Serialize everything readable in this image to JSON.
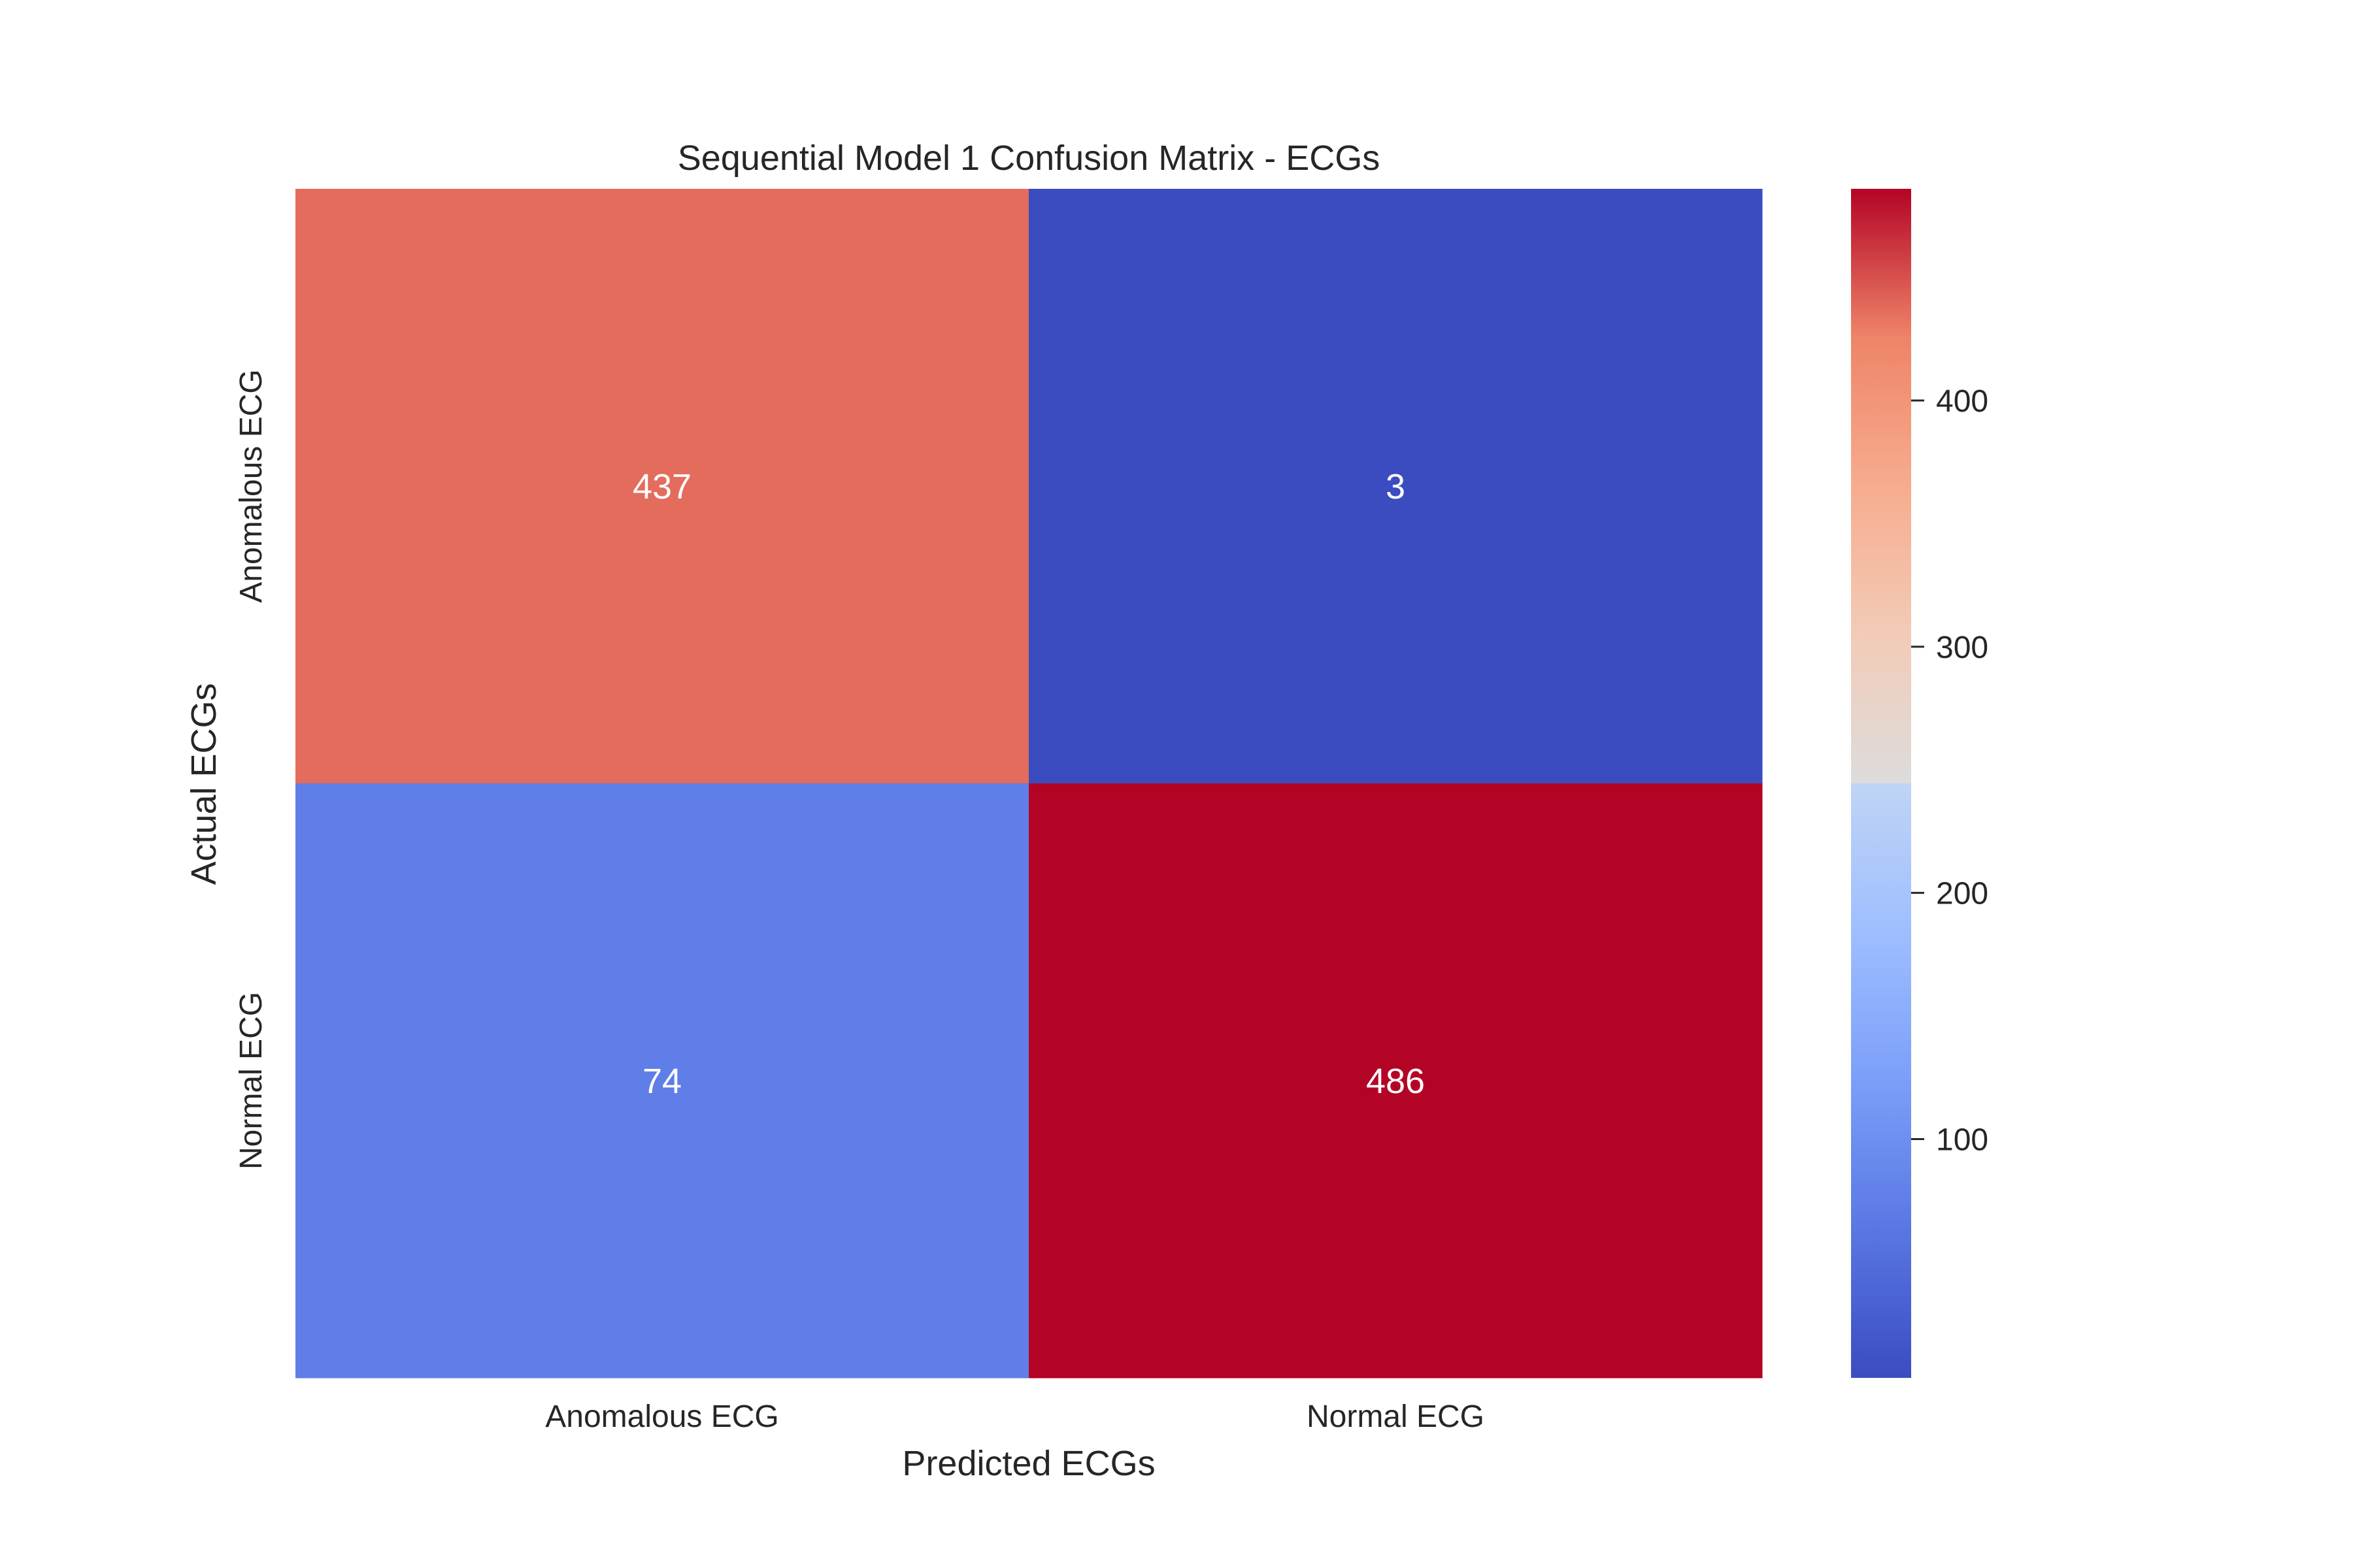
{
  "chart_data": {
    "type": "heatmap",
    "title": "Sequential Model 1 Confusion Matrix - ECGs",
    "xlabel": "Predicted ECGs",
    "ylabel": "Actual ECGs",
    "x_categories": [
      "Anomalous ECG",
      "Normal ECG"
    ],
    "y_categories": [
      "Anomalous ECG",
      "Normal ECG"
    ],
    "values": [
      [
        437,
        3
      ],
      [
        74,
        486
      ]
    ],
    "colormap": "coolwarm",
    "colorbar": {
      "range": [
        3,
        486
      ],
      "ticks": [
        100,
        200,
        300,
        400
      ],
      "tick_labels": [
        "100",
        "200",
        "300",
        "400"
      ]
    },
    "grid": false,
    "annotation_color": "#ffffff"
  }
}
